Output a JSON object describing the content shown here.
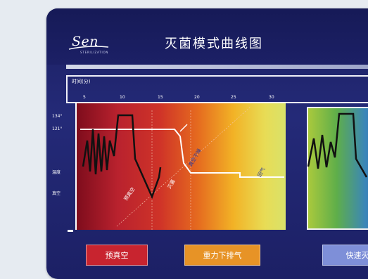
{
  "header": {
    "logo_text": "Sen",
    "logo_subtitle": "STERILIZATION",
    "title": "灭菌模式曲线图"
  },
  "chart": {
    "time_label": "时间(分)",
    "time_ticks": [
      "5",
      "10",
      "15",
      "20",
      "25",
      "30"
    ],
    "y_labels": [
      "134°",
      "121°",
      "温度",
      "真空"
    ],
    "phase_labels": [
      "预真空",
      "灭菌",
      "真空干燥",
      "回气"
    ]
  },
  "legend": {
    "items": [
      "预真空",
      "重力下排气",
      "快速灭"
    ]
  },
  "colors": {
    "panel_bg": "#1f246e",
    "legend_prevac": "#c8242f",
    "legend_gravity": "#e79326",
    "legend_fast": "#7e8fd8"
  }
}
